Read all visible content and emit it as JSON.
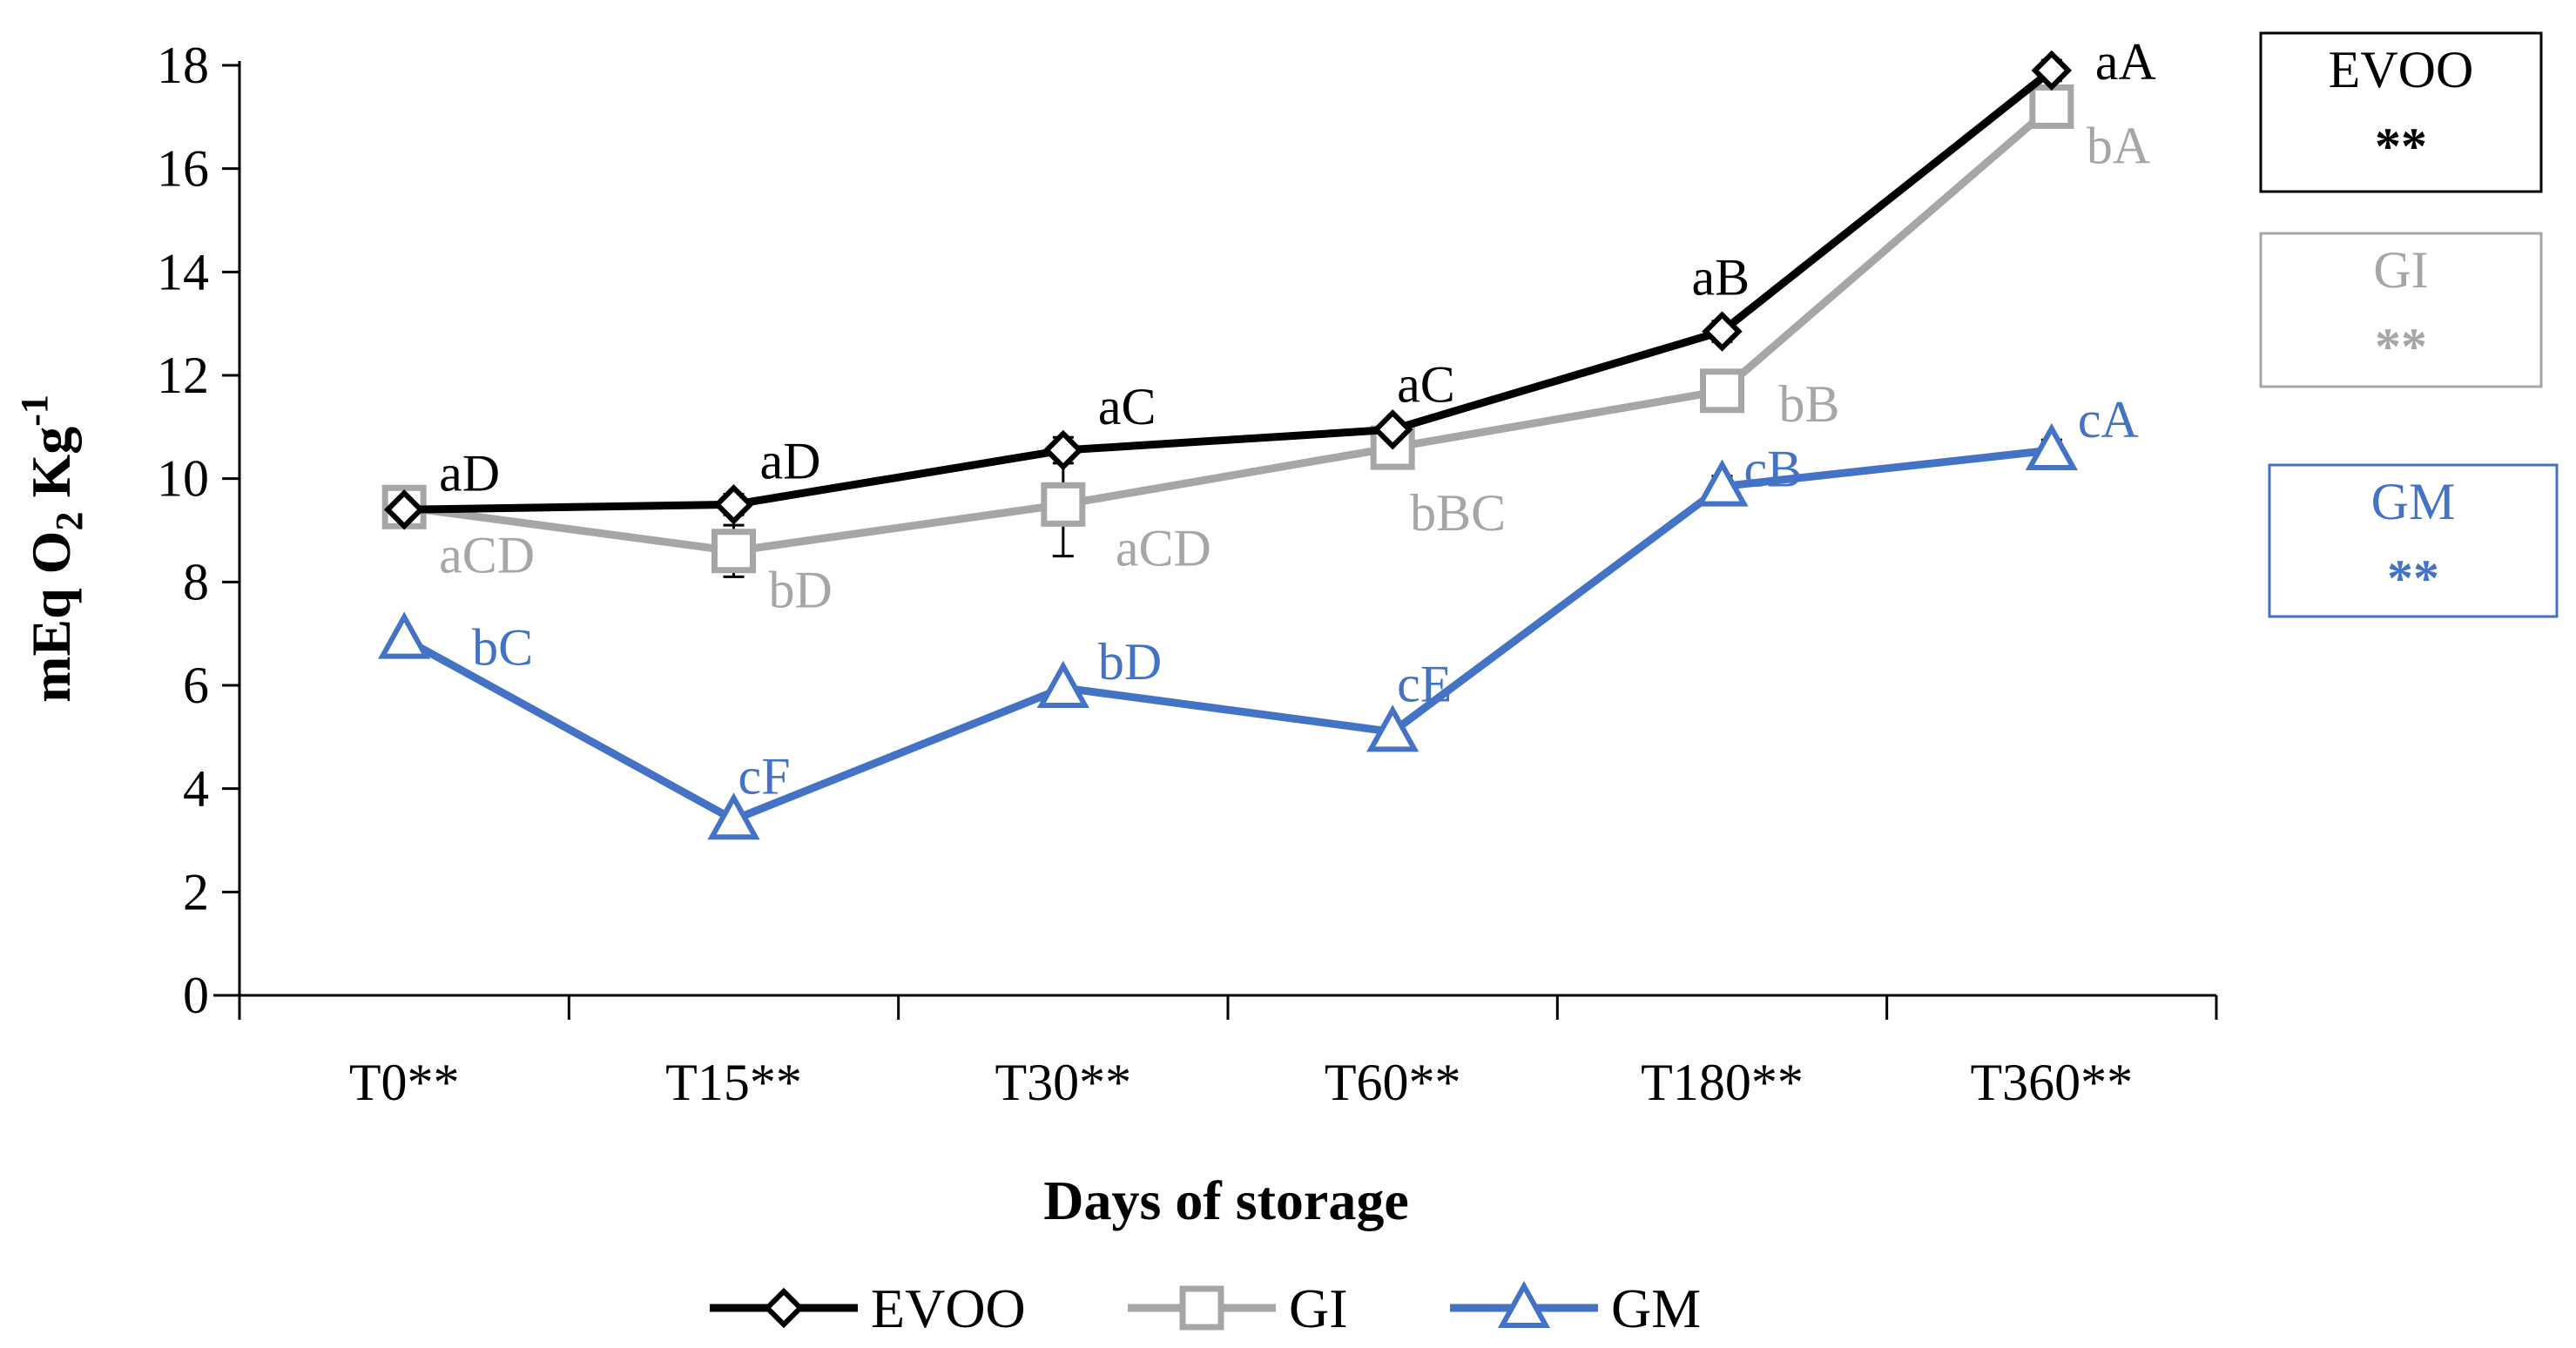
{
  "chart_data": {
    "type": "line",
    "xlabel": "Days of storage",
    "ylabel": "mEq O",
    "ylabel_sub": "2",
    "ylabel_unit": " Kg",
    "ylabel_sup": "-1",
    "ylim": [
      0,
      18
    ],
    "yticks": [
      "0",
      "2",
      "4",
      "6",
      "8",
      "10",
      "12",
      "14",
      "16",
      "18"
    ],
    "categories": [
      "T0**",
      "T15**",
      "T30**",
      "T60**",
      "T180**",
      "T360**"
    ],
    "series": [
      {
        "name": "EVOO",
        "color": "#000000",
        "marker": "diamond",
        "values": [
          9.4,
          9.5,
          10.55,
          10.95,
          12.85,
          17.9
        ],
        "errors": [
          0.15,
          0.2,
          0.25,
          0.15,
          0.2,
          0.2
        ],
        "labels": [
          "aD",
          "aD",
          "aC",
          "aC",
          "aB",
          "aA"
        ]
      },
      {
        "name": "GI",
        "color": "#a6a6a6",
        "marker": "square",
        "values": [
          9.45,
          8.6,
          9.5,
          10.6,
          11.7,
          17.2
        ],
        "errors": [
          0.2,
          0.5,
          1.0,
          0.3,
          0.2,
          0.3
        ],
        "labels": [
          "aCD",
          "bD",
          "aCD",
          "bBC",
          "bB",
          "bA"
        ]
      },
      {
        "name": "GM",
        "color": "#4472c4",
        "marker": "triangle",
        "values": [
          6.9,
          3.4,
          5.95,
          5.1,
          9.85,
          10.55
        ],
        "errors": [
          0.1,
          0.1,
          0.1,
          0.1,
          0.2,
          0.2
        ],
        "labels": [
          "bC",
          "cF",
          "bD",
          "cE",
          "cB",
          "cA"
        ]
      }
    ],
    "legend": [
      "EVOO",
      "GI",
      "GM"
    ],
    "legend_position": "bottom",
    "side_boxes": [
      {
        "label": "EVOO",
        "significance": "**",
        "color": "#000000"
      },
      {
        "label": "GI",
        "significance": "**",
        "color": "#a6a6a6"
      },
      {
        "label": "GM",
        "significance": "**",
        "color": "#4472c4"
      }
    ]
  }
}
